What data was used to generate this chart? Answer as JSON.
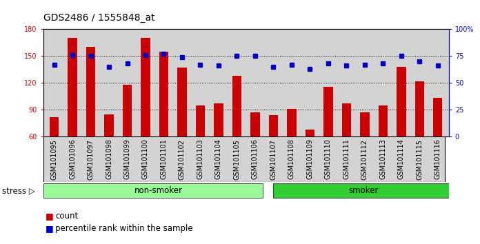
{
  "title": "GDS2486 / 1555848_at",
  "categories": [
    "GSM101095",
    "GSM101096",
    "GSM101097",
    "GSM101098",
    "GSM101099",
    "GSM101100",
    "GSM101101",
    "GSM101102",
    "GSM101103",
    "GSM101104",
    "GSM101105",
    "GSM101106",
    "GSM101107",
    "GSM101108",
    "GSM101109",
    "GSM101110",
    "GSM101111",
    "GSM101112",
    "GSM101113",
    "GSM101114",
    "GSM101115",
    "GSM101116"
  ],
  "red_values": [
    82,
    170,
    160,
    85,
    118,
    170,
    155,
    137,
    95,
    97,
    128,
    87,
    84,
    91,
    68,
    116,
    97,
    87,
    95,
    138,
    122,
    103
  ],
  "blue_values": [
    67,
    76,
    75,
    65,
    68,
    76,
    77,
    74,
    67,
    66,
    75,
    75,
    65,
    67,
    63,
    68,
    66,
    67,
    68,
    75,
    70,
    66
  ],
  "group1_label": "non-smoker",
  "group2_label": "smoker",
  "group1_count": 12,
  "group1_color": "#98FB98",
  "group2_color": "#32CD32",
  "bar_color": "#CC0000",
  "dot_color": "#0000CC",
  "bg_color": "#D3D3D3",
  "ylim_left": [
    60,
    180
  ],
  "ylim_right": [
    0,
    100
  ],
  "yticks_left": [
    60,
    90,
    120,
    150,
    180
  ],
  "yticks_right": [
    0,
    25,
    50,
    75,
    100
  ],
  "legend_count": "count",
  "legend_pct": "percentile rank within the sample",
  "title_fontsize": 10,
  "tick_fontsize": 7,
  "label_fontsize": 8.5
}
